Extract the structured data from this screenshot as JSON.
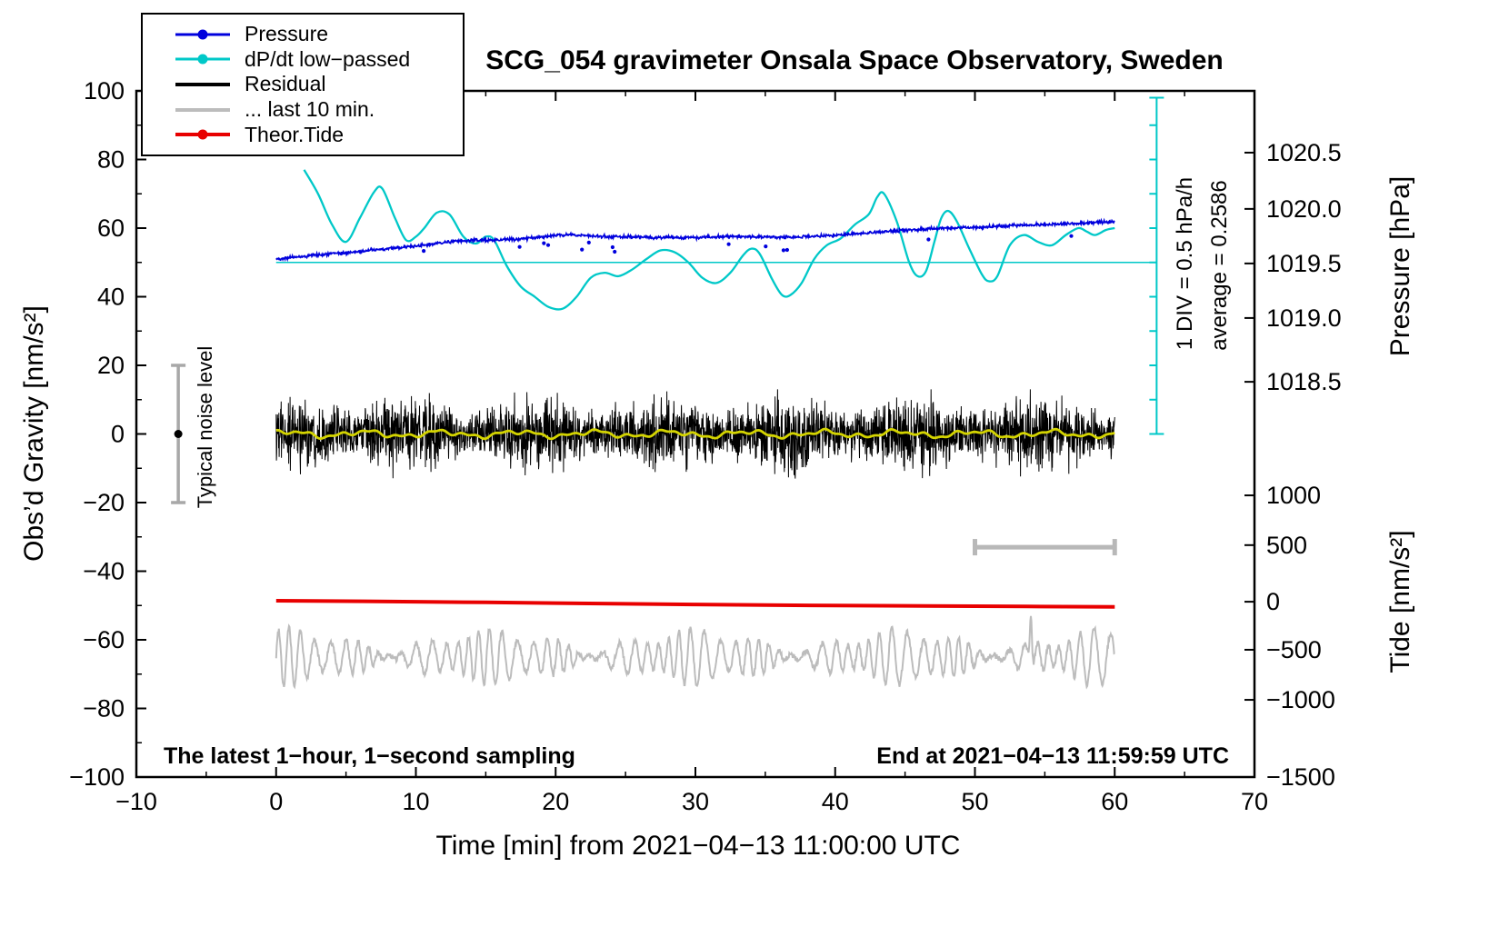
{
  "chart_data": {
    "type": "line",
    "title": "SCG_054 gravimeter Onsala Space Observatory, Sweden",
    "xlabel": "Time [min] from 2021−04−13 11:00:00 UTC",
    "ylabel_left": "Obs’d Gravity [nm/s²]",
    "ylabel_pressure": "Pressure [hPa]",
    "ylabel_tide": "Tide [nm/s²]",
    "x_axis": {
      "min": -10,
      "max": 70,
      "minor_step": 5,
      "tick_values": [
        -10,
        0,
        10,
        20,
        30,
        40,
        50,
        60,
        70
      ],
      "tick_labels": [
        "−10",
        "0",
        "10",
        "20",
        "30",
        "40",
        "50",
        "60",
        "70"
      ]
    },
    "y_axis": {
      "min": -100,
      "max": 100,
      "minor_step": 10,
      "tick_values": [
        -100,
        -80,
        -60,
        -40,
        -20,
        0,
        20,
        40,
        60,
        80,
        100
      ],
      "tick_labels": [
        "−100",
        "−80",
        "−60",
        "−40",
        "−20",
        "0",
        "20",
        "40",
        "60",
        "80",
        "100"
      ]
    },
    "pressure_axis": {
      "tick_labels": [
        "1020.5",
        "1020.0",
        "1019.5",
        "1019.0",
        "1018.5"
      ],
      "gravity_positions": [
        82,
        65.6,
        49.7,
        33.8,
        15.2
      ]
    },
    "tide_axis": {
      "tick_labels": [
        "1000",
        "500",
        "0",
        "−500",
        "−1000",
        "−1500"
      ],
      "gravity_positions": [
        -17.9,
        -32.4,
        -48.9,
        -62.9,
        -77.5,
        -100
      ]
    },
    "legend": {
      "items": [
        {
          "label": "Pressure",
          "color": "#0000dd",
          "dot": true,
          "line_width": 3
        },
        {
          "label": "dP/dt low−passed",
          "color": "#00c8c8",
          "dot": true,
          "line_width": 3
        },
        {
          "label": "Residual",
          "color": "#000000",
          "dot": false,
          "line_width": 4
        },
        {
          "label": "... last 10 min.",
          "color": "#bcbcbc",
          "dot": false,
          "line_width": 4
        },
        {
          "label": "Theor.Tide",
          "color": "#e80000",
          "dot": true,
          "line_width": 4
        }
      ]
    },
    "annotations": {
      "noise_bar": {
        "x": -7,
        "center": 0,
        "half_range": 20,
        "label": "Typical noise level"
      },
      "div_note": "1 DIV = 0.5 hPa/h",
      "average_note": "average = 0.2586",
      "sampling_note": "The latest 1−hour, 1−second sampling",
      "end_note": "End at 2021−04−13 11:59:59 UTC",
      "interval_bar": {
        "x_start": 50,
        "x_end": 60,
        "y": -33
      },
      "dpdt_axis": {
        "x": 63,
        "y_top": 98,
        "y_bottom": 0,
        "mean_line_y": 50,
        "tick_step": 10
      }
    },
    "series": {
      "pressure": {
        "name": "Pressure",
        "color": "#0000dd",
        "noise": 0.45,
        "dropouts": 14,
        "points": [
          [
            0,
            51
          ],
          [
            3,
            52.2
          ],
          [
            5,
            52.8
          ],
          [
            7,
            53.6
          ],
          [
            9,
            54.4
          ],
          [
            11,
            55.2
          ],
          [
            12,
            55.8
          ],
          [
            13,
            56.2
          ],
          [
            14,
            56.4
          ],
          [
            16,
            56.6
          ],
          [
            18,
            57.0
          ],
          [
            20,
            57.9
          ],
          [
            21,
            58.1
          ],
          [
            23,
            57.6
          ],
          [
            25,
            57.5
          ],
          [
            27,
            57.3
          ],
          [
            29,
            57.2
          ],
          [
            31,
            57.4
          ],
          [
            33,
            57.6
          ],
          [
            35,
            57.4
          ],
          [
            37,
            57.3
          ],
          [
            39,
            57.7
          ],
          [
            41,
            58.2
          ],
          [
            43,
            58.8
          ],
          [
            45,
            59.4
          ],
          [
            47,
            59.8
          ],
          [
            49,
            60.1
          ],
          [
            51,
            60.4
          ],
          [
            53,
            60.8
          ],
          [
            55,
            61.0
          ],
          [
            57,
            61.3
          ],
          [
            59,
            61.7
          ],
          [
            60,
            61.9
          ]
        ]
      },
      "dpdt": {
        "name": "dP/dt low-passed",
        "color": "#00c8c8",
        "points": [
          [
            2,
            77
          ],
          [
            3,
            70
          ],
          [
            4,
            61
          ],
          [
            5,
            56
          ],
          [
            6,
            63
          ],
          [
            7,
            70.5
          ],
          [
            7.6,
            71.5
          ],
          [
            8.5,
            63
          ],
          [
            9.3,
            56.5
          ],
          [
            10,
            57.5
          ],
          [
            10.6,
            60
          ],
          [
            11.5,
            64.5
          ],
          [
            12.4,
            64
          ],
          [
            13.4,
            57.5
          ],
          [
            14.3,
            55.5
          ],
          [
            15,
            57.5
          ],
          [
            15.6,
            56.5
          ],
          [
            16.5,
            49
          ],
          [
            17.5,
            43
          ],
          [
            18.5,
            40
          ],
          [
            19.5,
            37
          ],
          [
            20.5,
            36.5
          ],
          [
            21.5,
            40
          ],
          [
            22.5,
            45.5
          ],
          [
            23.5,
            47
          ],
          [
            24.5,
            46
          ],
          [
            25.5,
            48
          ],
          [
            26.5,
            51
          ],
          [
            27.5,
            53.5
          ],
          [
            28.5,
            53
          ],
          [
            29.5,
            50
          ],
          [
            30.5,
            45.5
          ],
          [
            31.5,
            44
          ],
          [
            32.5,
            47
          ],
          [
            33.4,
            52
          ],
          [
            34,
            54
          ],
          [
            34.6,
            52.5
          ],
          [
            35.5,
            45
          ],
          [
            36.2,
            40.5
          ],
          [
            36.8,
            40.5
          ],
          [
            37.6,
            44
          ],
          [
            38.5,
            51
          ],
          [
            39.4,
            55
          ],
          [
            40.4,
            57
          ],
          [
            41.4,
            61
          ],
          [
            42.4,
            64
          ],
          [
            43,
            69
          ],
          [
            43.5,
            70
          ],
          [
            44.4,
            62
          ],
          [
            45.3,
            50
          ],
          [
            45.9,
            46
          ],
          [
            46.5,
            47.5
          ],
          [
            47.1,
            56
          ],
          [
            47.6,
            63
          ],
          [
            48.1,
            65
          ],
          [
            48.7,
            62
          ],
          [
            49.6,
            54
          ],
          [
            50.5,
            46.5
          ],
          [
            51,
            44.5
          ],
          [
            51.6,
            46
          ],
          [
            52.5,
            55
          ],
          [
            53.5,
            58
          ],
          [
            54.5,
            56
          ],
          [
            55.5,
            55
          ],
          [
            56.5,
            58
          ],
          [
            57.4,
            60
          ],
          [
            58,
            59
          ],
          [
            58.6,
            58
          ],
          [
            59.4,
            59.5
          ],
          [
            60,
            60
          ]
        ]
      },
      "residual": {
        "name": "Residual",
        "color": "#000000",
        "baseline": 0,
        "std": 4.2,
        "clip": 13
      },
      "residual_smooth": {
        "color": "#d4d400",
        "baseline": 0,
        "amplitude": 1.3
      },
      "last10": {
        "name": "... last 10 min.",
        "color": "#bcbcbc",
        "baseline": -65,
        "amp_base": 4.5,
        "amp_var": 2.5,
        "period": 0.9,
        "spike_x": 54,
        "spike_height": 16.5
      },
      "tide": {
        "name": "Theor.Tide",
        "color": "#e80000",
        "points": [
          [
            0,
            -48.6
          ],
          [
            10,
            -48.9
          ],
          [
            20,
            -49.3
          ],
          [
            30,
            -49.7
          ],
          [
            40,
            -50.0
          ],
          [
            50,
            -50.2
          ],
          [
            60,
            -50.4
          ]
        ]
      }
    }
  }
}
